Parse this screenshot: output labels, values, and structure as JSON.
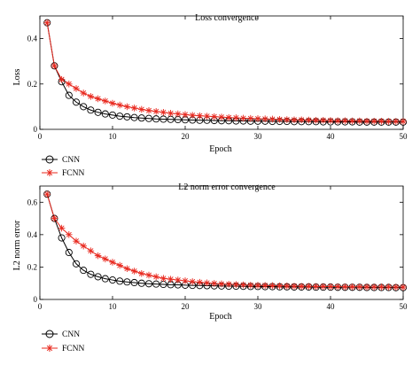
{
  "colors": {
    "cnn": "#000000",
    "fcnn": "#e8281e",
    "axis": "#000000"
  },
  "chart_data": [
    {
      "type": "line",
      "title": "Loss convergence",
      "xlabel": "Epoch",
      "ylabel": "Loss",
      "xlim": [
        0,
        50
      ],
      "ylim": [
        0,
        0.5
      ],
      "xticks": [
        0,
        10,
        20,
        30,
        40,
        50
      ],
      "yticks": [
        0,
        0.2,
        0.4
      ],
      "grid": false,
      "legend": "below-left",
      "x": [
        1,
        2,
        3,
        4,
        5,
        6,
        7,
        8,
        9,
        10,
        11,
        12,
        13,
        14,
        15,
        16,
        17,
        18,
        19,
        20,
        21,
        22,
        23,
        24,
        25,
        26,
        27,
        28,
        29,
        30,
        31,
        32,
        33,
        34,
        35,
        36,
        37,
        38,
        39,
        40,
        41,
        42,
        43,
        44,
        45,
        46,
        47,
        48,
        49,
        50
      ],
      "series": [
        {
          "name": "CNN",
          "marker": "circle",
          "values": [
            0.47,
            0.28,
            0.21,
            0.15,
            0.12,
            0.1,
            0.085,
            0.075,
            0.068,
            0.063,
            0.058,
            0.055,
            0.052,
            0.05,
            0.048,
            0.046,
            0.045,
            0.044,
            0.043,
            0.042,
            0.041,
            0.04,
            0.04,
            0.039,
            0.038,
            0.038,
            0.037,
            0.037,
            0.036,
            0.036,
            0.036,
            0.035,
            0.035,
            0.035,
            0.034,
            0.034,
            0.034,
            0.034,
            0.033,
            0.033,
            0.033,
            0.033,
            0.033,
            0.032,
            0.032,
            0.032,
            0.032,
            0.032,
            0.032,
            0.032
          ]
        },
        {
          "name": "FCNN",
          "marker": "star",
          "values": [
            0.47,
            0.28,
            0.22,
            0.2,
            0.18,
            0.16,
            0.145,
            0.135,
            0.125,
            0.115,
            0.107,
            0.1,
            0.094,
            0.088,
            0.083,
            0.079,
            0.075,
            0.071,
            0.068,
            0.065,
            0.062,
            0.06,
            0.058,
            0.056,
            0.054,
            0.052,
            0.051,
            0.049,
            0.048,
            0.047,
            0.046,
            0.045,
            0.044,
            0.043,
            0.042,
            0.042,
            0.041,
            0.04,
            0.04,
            0.039,
            0.038,
            0.038,
            0.037,
            0.037,
            0.036,
            0.036,
            0.036,
            0.035,
            0.035,
            0.035
          ]
        }
      ]
    },
    {
      "type": "line",
      "title": "L2 norm error convergence",
      "xlabel": "Epoch",
      "ylabel": "L2 norm error",
      "xlim": [
        0,
        50
      ],
      "ylim": [
        0,
        0.7
      ],
      "xticks": [
        0,
        10,
        20,
        30,
        40,
        50
      ],
      "yticks": [
        0,
        0.2,
        0.4,
        0.6
      ],
      "grid": false,
      "legend": "below-left",
      "x": [
        1,
        2,
        3,
        4,
        5,
        6,
        7,
        8,
        9,
        10,
        11,
        12,
        13,
        14,
        15,
        16,
        17,
        18,
        19,
        20,
        21,
        22,
        23,
        24,
        25,
        26,
        27,
        28,
        29,
        30,
        31,
        32,
        33,
        34,
        35,
        36,
        37,
        38,
        39,
        40,
        41,
        42,
        43,
        44,
        45,
        46,
        47,
        48,
        49,
        50
      ],
      "series": [
        {
          "name": "CNN",
          "marker": "circle",
          "values": [
            0.65,
            0.5,
            0.38,
            0.29,
            0.22,
            0.18,
            0.155,
            0.14,
            0.128,
            0.12,
            0.113,
            0.108,
            0.104,
            0.1,
            0.097,
            0.095,
            0.093,
            0.091,
            0.09,
            0.088,
            0.087,
            0.086,
            0.085,
            0.084,
            0.083,
            0.082,
            0.082,
            0.081,
            0.08,
            0.08,
            0.079,
            0.079,
            0.078,
            0.078,
            0.077,
            0.077,
            0.077,
            0.076,
            0.076,
            0.076,
            0.075,
            0.075,
            0.075,
            0.075,
            0.074,
            0.074,
            0.074,
            0.074,
            0.073,
            0.073
          ]
        },
        {
          "name": "FCNN",
          "marker": "star",
          "values": [
            0.65,
            0.5,
            0.44,
            0.4,
            0.36,
            0.33,
            0.3,
            0.27,
            0.25,
            0.23,
            0.21,
            0.19,
            0.175,
            0.16,
            0.15,
            0.14,
            0.13,
            0.125,
            0.12,
            0.115,
            0.11,
            0.106,
            0.102,
            0.099,
            0.096,
            0.094,
            0.092,
            0.09,
            0.088,
            0.087,
            0.086,
            0.085,
            0.084,
            0.083,
            0.082,
            0.081,
            0.081,
            0.08,
            0.08,
            0.079,
            0.079,
            0.078,
            0.078,
            0.078,
            0.077,
            0.077,
            0.077,
            0.077,
            0.076,
            0.076
          ]
        }
      ]
    }
  ]
}
